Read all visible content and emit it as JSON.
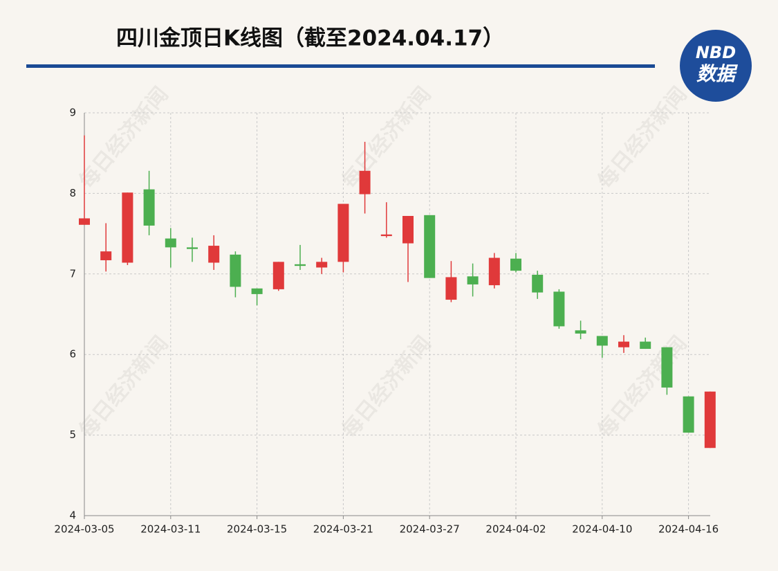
{
  "chart_data": {
    "type": "candlestick",
    "title": "四川金顶日K线图（截至2024.04.17）",
    "categories": [
      "2024-03-05",
      null,
      null,
      null,
      "2024-03-11",
      null,
      null,
      null,
      "2024-03-15",
      null,
      null,
      null,
      "2024-03-21",
      null,
      null,
      null,
      "2024-03-27",
      null,
      null,
      null,
      "2024-04-02",
      null,
      null,
      null,
      "2024-04-10",
      null,
      null,
      null,
      "2024-04-16",
      null
    ],
    "open": [
      7.61,
      7.17,
      7.14,
      8.05,
      7.44,
      7.33,
      7.14,
      7.24,
      6.82,
      6.81,
      7.12,
      7.08,
      7.15,
      7.99,
      7.47,
      7.38,
      7.73,
      6.68,
      6.97,
      6.86,
      7.19,
      6.99,
      6.78,
      6.3,
      6.23,
      6.09,
      6.16,
      6.09,
      5.48,
      4.84
    ],
    "high": [
      8.72,
      7.63,
      8.01,
      8.28,
      7.57,
      7.45,
      7.48,
      7.28,
      6.82,
      7.15,
      7.36,
      7.2,
      7.87,
      8.64,
      7.89,
      7.72,
      7.73,
      7.16,
      7.13,
      7.26,
      7.26,
      7.04,
      6.81,
      6.42,
      6.23,
      6.24,
      6.21,
      6.09,
      5.48,
      5.54
    ],
    "low": [
      7.61,
      7.03,
      7.11,
      7.48,
      7.08,
      7.15,
      7.05,
      6.71,
      6.61,
      6.79,
      7.05,
      7.0,
      7.02,
      7.75,
      7.45,
      6.9,
      6.95,
      6.65,
      6.72,
      6.82,
      7.02,
      6.69,
      6.32,
      6.19,
      5.96,
      6.02,
      6.07,
      5.5,
      5.03,
      4.84
    ],
    "close": [
      7.69,
      7.28,
      8.01,
      7.6,
      7.33,
      7.31,
      7.35,
      6.84,
      6.75,
      7.15,
      7.1,
      7.15,
      7.87,
      8.28,
      7.49,
      7.72,
      6.95,
      6.96,
      6.87,
      7.2,
      7.04,
      6.77,
      6.35,
      6.26,
      6.11,
      6.16,
      6.07,
      5.59,
      5.03,
      5.54
    ],
    "up_color": "#e0393a",
    "down_color": "#4caf50",
    "ylim": [
      4,
      9
    ],
    "yticks": [
      4,
      5,
      6,
      7,
      8,
      9
    ],
    "grid": true
  },
  "branding": {
    "watermark": "每日经济新闻",
    "logo_top": "NBD",
    "logo_bottom": "数据"
  }
}
